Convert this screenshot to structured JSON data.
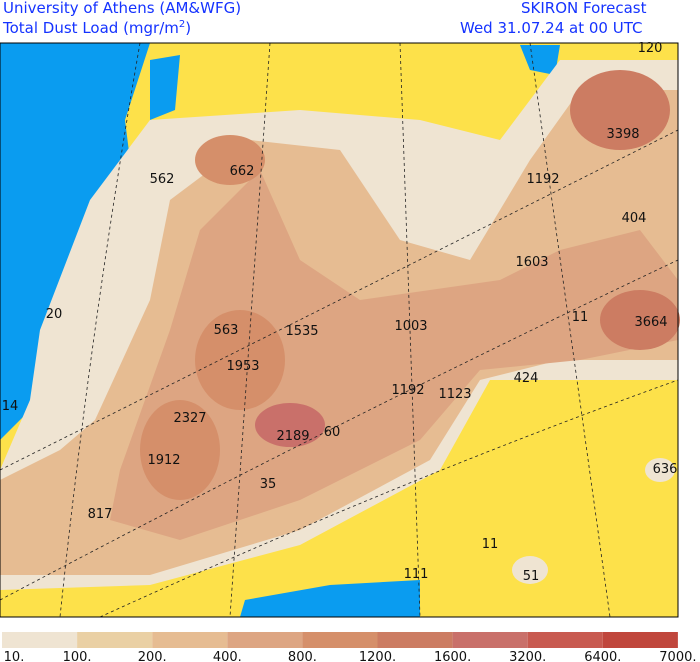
{
  "header": {
    "institution": "University of Athens (AM&WFG)",
    "field": "Total Dust Load (mgr/m",
    "field_sup": "2",
    "field_end": ")",
    "product": "SKIRON Forecast",
    "valid": "Wed 31.07.24 at 00 UTC"
  },
  "map_labels": [
    120,
    3398,
    562,
    662,
    1192,
    404,
    1603,
    20,
    11,
    3664,
    563,
    1535,
    1003,
    1953,
    424,
    14,
    1192,
    1123,
    2327,
    2189,
    60,
    1912,
    636,
    35,
    817,
    11,
    111,
    51
  ],
  "colorbar": {
    "labels": [
      "10.",
      "100.",
      "200.",
      "400.",
      "800.",
      "1200.",
      "1600.",
      "3200.",
      "6400.",
      "7000."
    ],
    "colors": [
      "#efe4d2",
      "#ead0a4",
      "#e6bc92",
      "#dda582",
      "#d58f6a",
      "#cc7c62",
      "#c9706a",
      "#c85a50",
      "#c0463c"
    ]
  }
}
